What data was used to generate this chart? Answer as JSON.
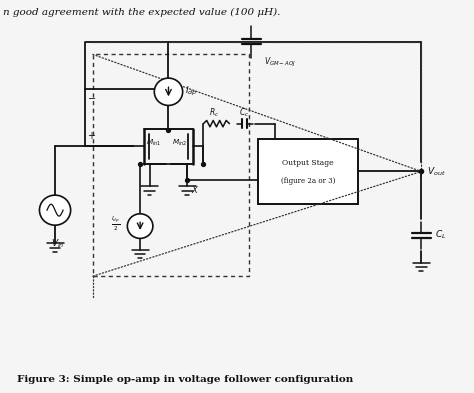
{
  "title_text": "Figure 3: Simple op-amp in voltage follower configuration",
  "header_text": "n good agreement with the expected value (100 μH).",
  "bg_color": "#f5f5f5",
  "line_color": "#111111",
  "fig_width": 4.74,
  "fig_height": 3.93,
  "dpi": 100,
  "xlim": [
    0,
    10
  ],
  "ylim": [
    0,
    8.6
  ]
}
